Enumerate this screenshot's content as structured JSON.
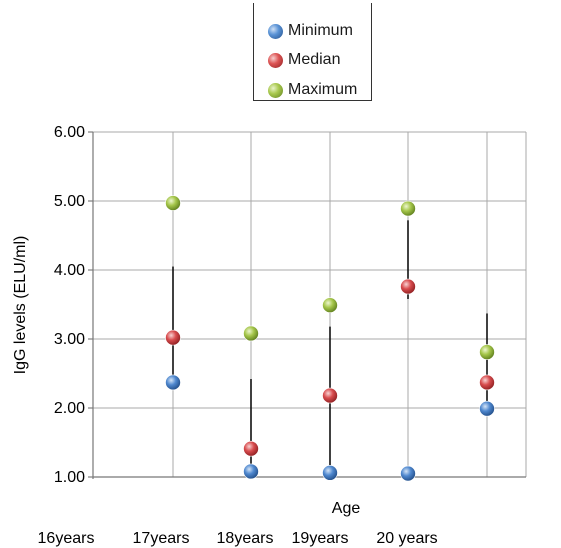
{
  "chart_data": {
    "type": "scatter",
    "xlabel": "Age",
    "ylabel": "IgG levels (ELU/ml)",
    "ylim": [
      1.0,
      6.0
    ],
    "yticks": [
      "1.00",
      "2.00",
      "3.00",
      "4.00",
      "5.00",
      "6.00"
    ],
    "categories": [
      "16years",
      "17years",
      "18years",
      "19years",
      "20 years"
    ],
    "grid": true,
    "legend_placement": "top-center",
    "series": [
      {
        "name": "Minimum",
        "color": "#3a72b8",
        "values": [
          2.37,
          1.08,
          1.06,
          1.05,
          1.99
        ]
      },
      {
        "name": "Median",
        "color": "#c8383a",
        "values": [
          3.02,
          1.41,
          2.18,
          3.76,
          2.37
        ]
      },
      {
        "name": "Maximum",
        "color": "#8fb33a",
        "values": [
          4.97,
          3.08,
          3.49,
          4.89,
          2.81
        ]
      }
    ],
    "error_bars": [
      {
        "low": 2.38,
        "high": 4.05
      },
      {
        "low": 1.1,
        "high": 2.42
      },
      {
        "low": 1.1,
        "high": 3.18
      },
      {
        "low": 3.58,
        "high": 4.72
      },
      {
        "low": 2.0,
        "high": 3.37
      }
    ]
  }
}
